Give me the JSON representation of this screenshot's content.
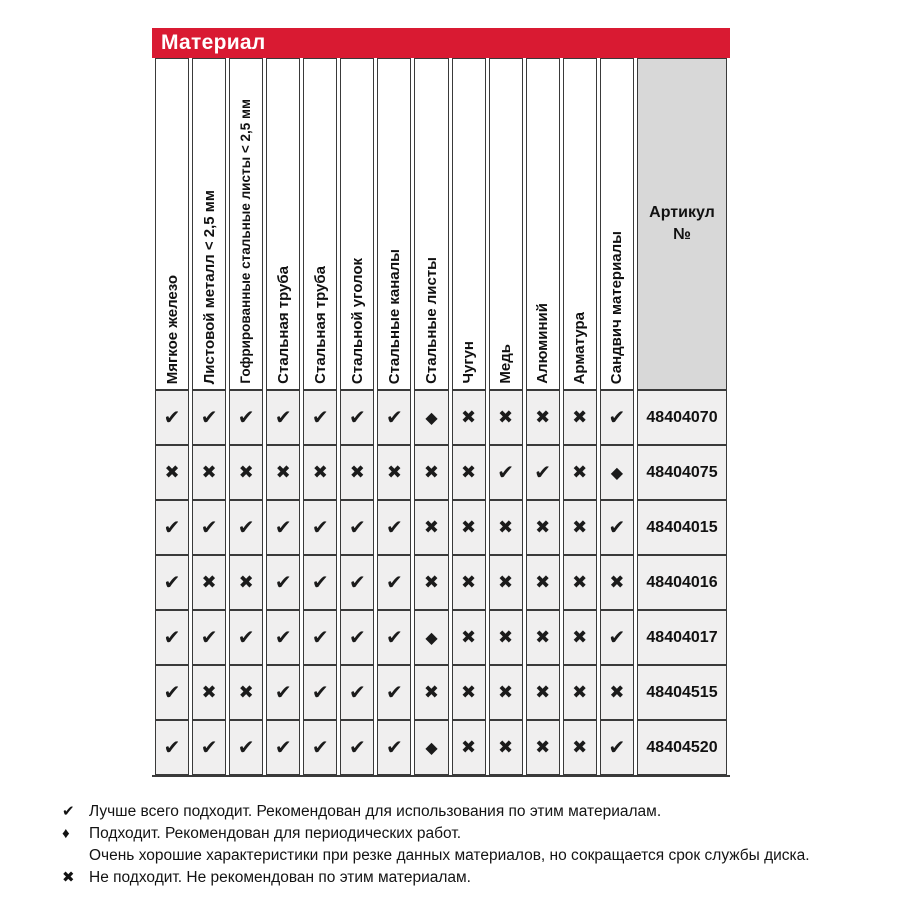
{
  "title": "Материал",
  "colors": {
    "header_red": "#d91a32",
    "cell_bg": "#f0efef",
    "artikul_head_bg": "#d8d8d8",
    "border": "#3a3a3a",
    "text": "#111111"
  },
  "symbols": {
    "check": "✔",
    "cross": "✖",
    "diamond": "◆"
  },
  "table": {
    "columns": [
      "Мягкое железо",
      "Листовой металл < 2,5 мм",
      "Гофрированные стальные листы < 2,5 мм",
      "Стальная труба",
      "Стальная труба",
      "Стальной уголок",
      "Стальные каналы",
      "Стальные листы",
      "Чугун",
      "Медь",
      "Алюминий",
      "Арматура",
      "Сандвич материалы"
    ],
    "artikul_header": {
      "line1": "Артикул",
      "line2": "№"
    },
    "rows": [
      {
        "artikul": "48404070",
        "cells": [
          "check",
          "check",
          "check",
          "check",
          "check",
          "check",
          "check",
          "diamond",
          "cross",
          "cross",
          "cross",
          "cross",
          "check"
        ]
      },
      {
        "artikul": "48404075",
        "cells": [
          "cross",
          "cross",
          "cross",
          "cross",
          "cross",
          "cross",
          "cross",
          "cross",
          "cross",
          "check",
          "check",
          "cross",
          "diamond"
        ]
      },
      {
        "artikul": "48404015",
        "cells": [
          "check",
          "check",
          "check",
          "check",
          "check",
          "check",
          "check",
          "cross",
          "cross",
          "cross",
          "cross",
          "cross",
          "check"
        ]
      },
      {
        "artikul": "48404016",
        "cells": [
          "check",
          "cross",
          "cross",
          "check",
          "check",
          "check",
          "check",
          "cross",
          "cross",
          "cross",
          "cross",
          "cross",
          "cross"
        ]
      },
      {
        "artikul": "48404017",
        "cells": [
          "check",
          "check",
          "check",
          "check",
          "check",
          "check",
          "check",
          "diamond",
          "cross",
          "cross",
          "cross",
          "cross",
          "check"
        ]
      },
      {
        "artikul": "48404515",
        "cells": [
          "check",
          "cross",
          "cross",
          "check",
          "check",
          "check",
          "check",
          "cross",
          "cross",
          "cross",
          "cross",
          "cross",
          "cross"
        ]
      },
      {
        "artikul": "48404520",
        "cells": [
          "check",
          "check",
          "check",
          "check",
          "check",
          "check",
          "check",
          "diamond",
          "cross",
          "cross",
          "cross",
          "cross",
          "check"
        ]
      }
    ]
  },
  "legend": {
    "items": [
      {
        "icon": "check-icon",
        "symbol": "✔",
        "text": "Лучше всего подходит. Рекомендован для использования по этим материалам."
      },
      {
        "icon": "diamond-icon",
        "symbol": "♦",
        "text": "Подходит. Рекомендован для периодических работ.",
        "note": "Очень хорошие характеристики при резке данных материалов, но сокращается срок службы диска."
      },
      {
        "icon": "cross-icon",
        "symbol": "✖",
        "text": "Не подходит. Не рекомендован по этим материалам."
      }
    ]
  }
}
